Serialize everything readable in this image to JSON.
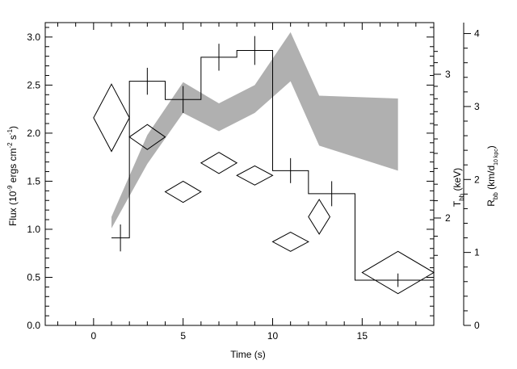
{
  "chart_data": {
    "type": "line",
    "xlabel": "Time (s)",
    "ylabel": "Flux (10",
    "ylabel_sup1": "-9",
    "ylabel_mid": " ergs cm",
    "ylabel_sup2": "-2",
    "ylabel_mid2": " s",
    "ylabel_sup3": "-1",
    "ylabel_end": ")",
    "ylabel_right1": "T",
    "ylabel_right1_sub": "bb",
    "ylabel_right1_end": " (keV)",
    "ylabel_right2": "R",
    "ylabel_right2_sub": "bb",
    "ylabel_right2_mid": " (km/d",
    "ylabel_right2_sub2": "10 kpc",
    "ylabel_right2_end": ")",
    "xlim": [
      -2.7,
      19
    ],
    "ylim": [
      0,
      3.15
    ],
    "x_ticks": [
      0,
      5,
      10,
      15
    ],
    "y_ticks": [
      "0.0",
      "0.5",
      "1.0",
      "1.5",
      "2.0",
      "2.5",
      "3.0"
    ],
    "y_ticks_values": [
      0.0,
      0.5,
      1.0,
      1.5,
      2.0,
      2.5,
      3.0
    ],
    "right_axis_T": {
      "log_scale": true,
      "ticks": [
        {
          "label": "2",
          "value": 2
        },
        {
          "label": "3",
          "value": 3
        }
      ]
    },
    "right_axis_R": {
      "range": [
        0,
        4.15
      ],
      "ticks": [
        {
          "label": "0",
          "value": 0
        },
        {
          "label": "1",
          "value": 1
        },
        {
          "label": "2",
          "value": 2
        },
        {
          "label": "3",
          "value": 3
        },
        {
          "label": "4",
          "value": 4
        }
      ]
    },
    "flux_series": {
      "bins": [
        {
          "x0": 1.0,
          "x1": 2.0,
          "y": 0.91,
          "err": 0.14
        },
        {
          "x0": 2.0,
          "x1": 4.0,
          "y": 2.54,
          "err": 0.14
        },
        {
          "x0": 4.0,
          "x1": 6.0,
          "y": 2.35,
          "err": 0.14
        },
        {
          "x0": 6.0,
          "x1": 8.0,
          "y": 2.79,
          "err": 0.14
        },
        {
          "x0": 8.0,
          "x1": 10.0,
          "y": 2.86,
          "err": 0.15
        },
        {
          "x0": 10.0,
          "x1": 12.0,
          "y": 1.61,
          "err": 0.13
        },
        {
          "x0": 12.0,
          "x1": 14.6,
          "y": 1.37,
          "err": 0.13
        },
        {
          "x0": 14.6,
          "x1": 19.0,
          "y": 0.47,
          "err": 0.07
        }
      ]
    },
    "temperature_series": {
      "points": [
        {
          "x": 1.0,
          "y": 2.16,
          "xerr": 1.0,
          "yerr": 0.35
        },
        {
          "x": 3.0,
          "y": 1.96,
          "xerr": 1.0,
          "yerr": 0.13
        },
        {
          "x": 5.0,
          "y": 1.39,
          "xerr": 1.0,
          "yerr": 0.11
        },
        {
          "x": 7.0,
          "y": 1.69,
          "xerr": 1.0,
          "yerr": 0.11
        },
        {
          "x": 9.0,
          "y": 1.56,
          "xerr": 1.0,
          "yerr": 0.1
        },
        {
          "x": 11.0,
          "y": 0.87,
          "xerr": 1.0,
          "yerr": 0.1
        },
        {
          "x": 12.6,
          "y": 1.13,
          "xerr": 0.6,
          "yerr": 0.18
        },
        {
          "x": 17.0,
          "y": 0.55,
          "xerr": 2.0,
          "yerr": 0.22
        }
      ]
    },
    "radius_band": {
      "x": [
        1,
        3,
        5,
        7,
        9,
        11,
        12.6,
        17
      ],
      "upper": [
        1.13,
        1.98,
        2.53,
        2.31,
        2.5,
        3.05,
        2.39,
        2.36
      ],
      "lower": [
        1.01,
        1.68,
        2.21,
        2.02,
        2.21,
        2.54,
        1.87,
        1.61
      ]
    },
    "colors": {
      "band": "#b0b0b0",
      "line": "#000000"
    }
  }
}
